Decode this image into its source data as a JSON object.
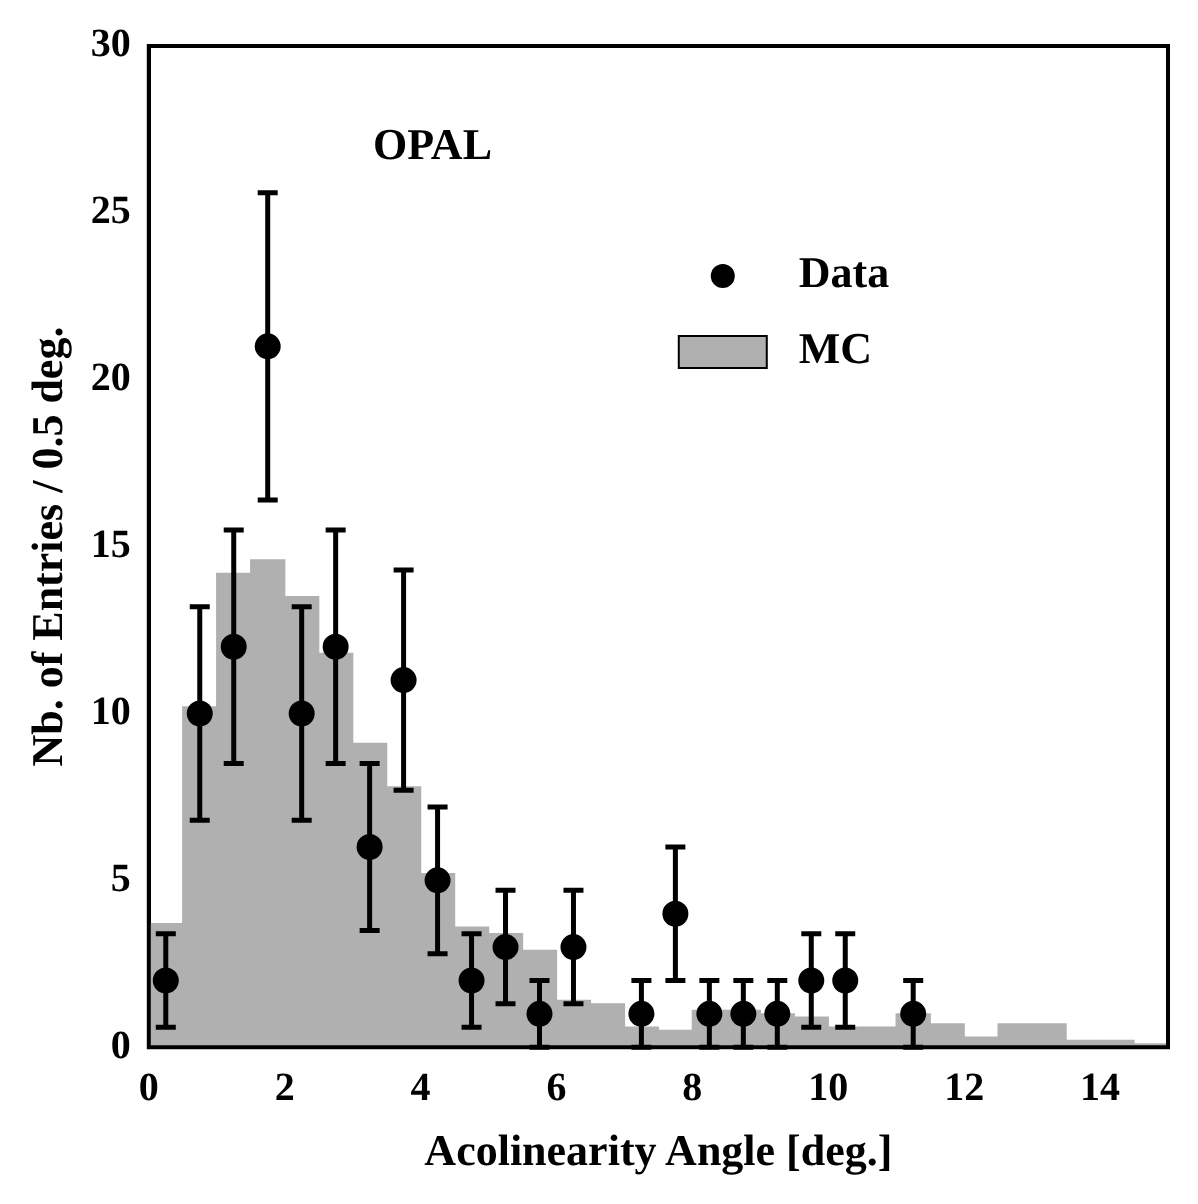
{
  "chart_data": {
    "type": "histogram",
    "xlabel": "Acolinearity Angle [deg.]",
    "ylabel": "Nb. of Entries / 0.5 deg.",
    "annotations": [
      "OPAL"
    ],
    "bins": [
      0,
      0.5,
      1,
      1.5,
      2,
      2.5,
      3,
      3.5,
      4,
      4.5,
      5,
      5.5,
      6,
      6.5,
      7,
      7.5,
      8,
      8.5,
      9,
      9.5,
      10,
      10.5,
      11,
      11.5,
      12,
      12.5,
      13,
      13.5,
      14,
      14.5,
      15
    ],
    "series": [
      {
        "name": "MC",
        "color": "#b0b0b0",
        "values": [
          3.7,
          10.2,
          14.2,
          14.6,
          13.5,
          11.8,
          9.1,
          7.8,
          5.2,
          3.6,
          3.4,
          2.9,
          1.4,
          1.3,
          0.6,
          0.5,
          1.1,
          1.1,
          1.0,
          0.9,
          0.6,
          0.6,
          1.0,
          0.7,
          0.3,
          0.7,
          0.7,
          0.2,
          0.2,
          0.1
        ]
      },
      {
        "name": "Data",
        "type": "scatter",
        "color": "#000000",
        "marker": "circle",
        "x": [
          0.25,
          0.75,
          1.25,
          1.75,
          2.25,
          2.75,
          3.25,
          3.75,
          4.25,
          4.75,
          5.25,
          5.75,
          6.25,
          7.25,
          7.75,
          8.25,
          8.75,
          9.25,
          9.75,
          10.25,
          11.25
        ],
        "values": [
          2,
          10,
          12,
          21,
          10,
          12,
          6,
          11,
          5,
          2,
          3,
          1,
          3,
          1,
          4,
          1,
          1,
          1,
          2,
          2,
          1
        ],
        "errors": [
          1.4,
          3.2,
          3.5,
          4.6,
          3.2,
          3.5,
          2.5,
          3.3,
          2.2,
          1.4,
          1.7,
          1,
          1.7,
          1,
          2,
          1,
          1,
          1,
          1.4,
          1.4,
          1
        ]
      }
    ],
    "xlim": [
      0,
      15
    ],
    "xticks": [
      0,
      2,
      4,
      6,
      8,
      10,
      12,
      14
    ],
    "ylim": [
      0,
      30
    ],
    "yticks": [
      0,
      5,
      10,
      15,
      20,
      25,
      30
    ],
    "legend": "top right"
  }
}
